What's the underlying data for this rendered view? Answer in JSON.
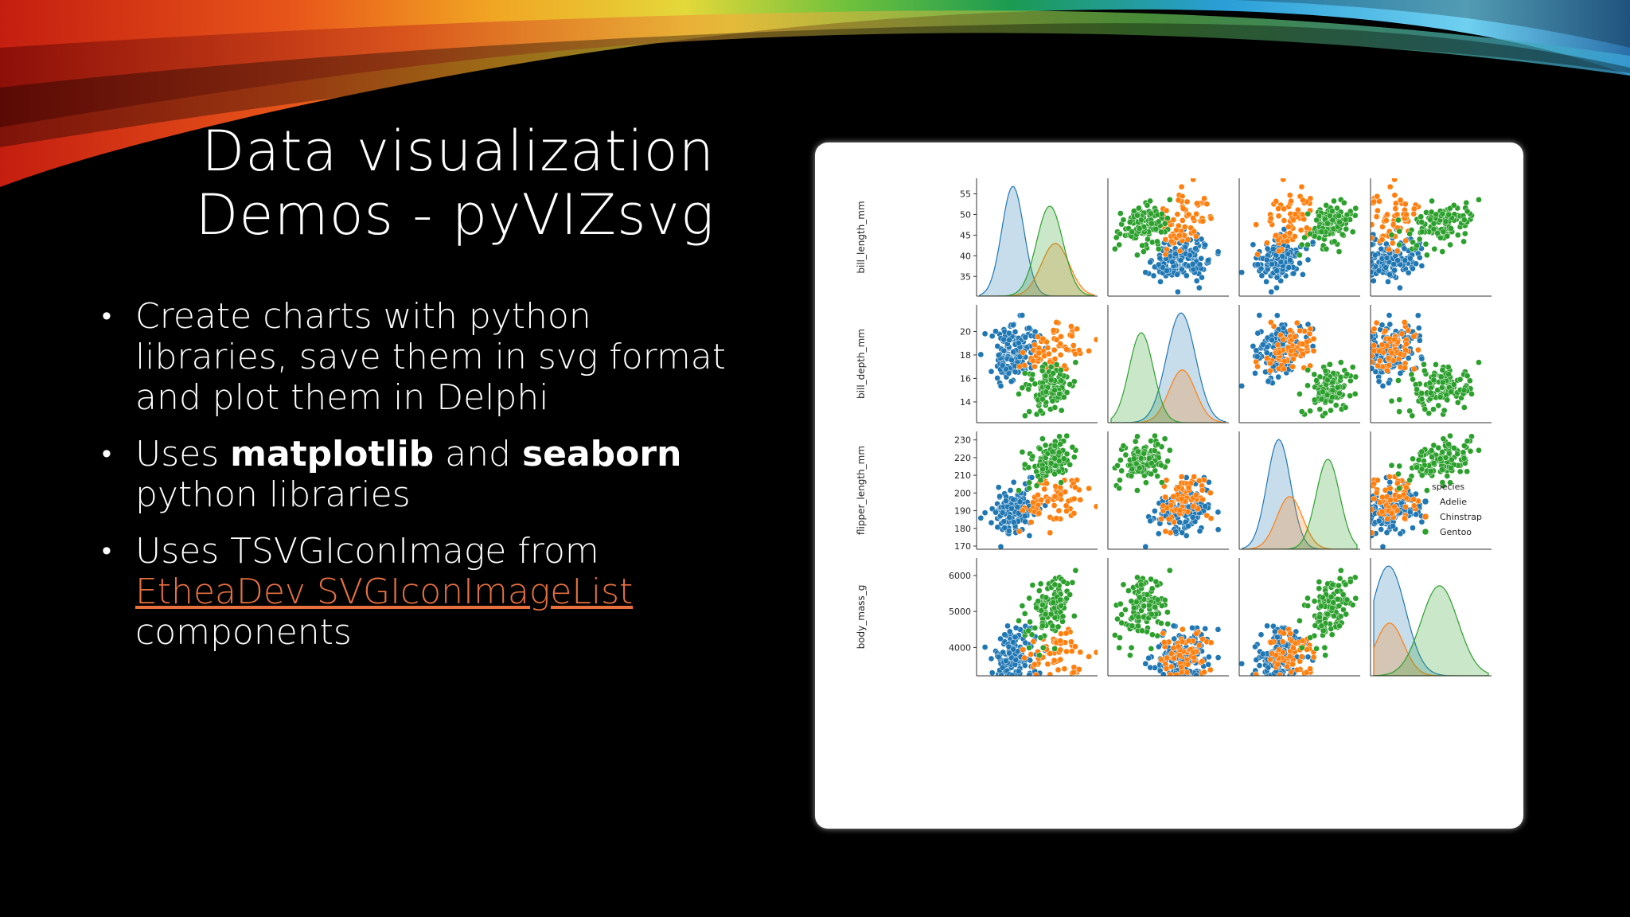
{
  "slide": {
    "title_line1": "Data visualization",
    "title_line2": "Demos - pyVIZsvg",
    "bullets": [
      {
        "text": "Create charts with python libraries, save them in svg format and plot them in Delphi"
      },
      {
        "pre": "Uses ",
        "bold1": "matplotlib",
        "mid": " and ",
        "bold2": "seaborn",
        "post": " python libraries"
      },
      {
        "pre": "Uses TSVGIconImage from ",
        "link": "EtheaDev SVGIconImageList",
        "post": " components"
      }
    ]
  },
  "chart_data": {
    "type": "scatter",
    "subtype": "pairplot",
    "variables": [
      "bill_length_mm",
      "bill_depth_mm",
      "flipper_length_mm",
      "body_mass_g"
    ],
    "ticks": {
      "bill_length_mm": [
        "35",
        "40",
        "45",
        "50",
        "55"
      ],
      "bill_depth_mm": [
        "14",
        "16",
        "18",
        "20"
      ],
      "flipper_length_mm": [
        "170",
        "180",
        "190",
        "200",
        "210",
        "220",
        "230"
      ],
      "body_mass_g": [
        "4000",
        "5000",
        "6000"
      ]
    },
    "legend": {
      "title": "species",
      "placement": "right",
      "series": [
        {
          "name": "Adelie",
          "color": "#1f77b4"
        },
        {
          "name": "Chinstrap",
          "color": "#ff7f0e"
        },
        {
          "name": "Gentoo",
          "color": "#2ca02c"
        }
      ]
    },
    "species_stats": {
      "Adelie": {
        "bill_length_mm": 38.8,
        "bill_depth_mm": 18.3,
        "flipper_length_mm": 190,
        "body_mass_g": 3700
      },
      "Chinstrap": {
        "bill_length_mm": 48.8,
        "bill_depth_mm": 18.4,
        "flipper_length_mm": 196,
        "body_mass_g": 3730
      },
      "Gentoo": {
        "bill_length_mm": 47.5,
        "bill_depth_mm": 15.0,
        "flipper_length_mm": 217,
        "body_mass_g": 5080
      }
    }
  }
}
